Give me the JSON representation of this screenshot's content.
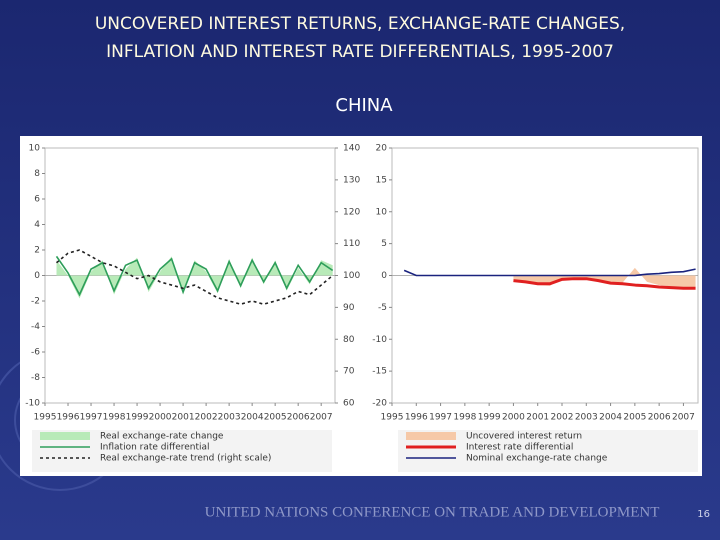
{
  "slide": {
    "title": [
      "UNCOVERED INTEREST RETURNS, EXCHANGE-RATE CHANGES,",
      "INFLATION AND INTEREST RATE DIFFERENTIALS, 1995-2007"
    ],
    "subtitle": "CHINA",
    "footer": "UNITED NATIONS CONFERENCE ON TRADE AND DEVELOPMENT",
    "page_number": "16"
  },
  "chart_data": [
    {
      "type": "line",
      "xlim": [
        1995,
        2007.6
      ],
      "xticks": [
        1995,
        1996,
        1997,
        1998,
        1999,
        2000,
        2001,
        2002,
        2003,
        2004,
        2005,
        2006,
        2007
      ],
      "ylim": [
        -10,
        10
      ],
      "yticks": [
        -10,
        -8,
        -6,
        -4,
        -2,
        0,
        2,
        4,
        6,
        8,
        10
      ],
      "y2lim": [
        60,
        140
      ],
      "y2ticks": [
        60,
        70,
        80,
        90,
        100,
        110,
        120,
        130,
        140
      ],
      "x": [
        1995.5,
        1996,
        1996.5,
        1997,
        1997.5,
        1998,
        1998.5,
        1999,
        1999.5,
        2000,
        2000.5,
        2001,
        2001.5,
        2002,
        2002.5,
        2003,
        2003.5,
        2004,
        2004.5,
        2005,
        2005.5,
        2006,
        2006.5,
        2007,
        2007.5
      ],
      "series": [
        {
          "name": "Real exchange-rate change",
          "kind": "area",
          "color": "#b8eab8",
          "values": [
            1.2,
            0,
            -1.8,
            0.3,
            1.2,
            -1.5,
            0.5,
            1.4,
            -1.3,
            0.3,
            1.5,
            -1.5,
            1.2,
            0.3,
            -1.4,
            1.3,
            -1.0,
            1.4,
            -0.7,
            1.2,
            -1.2,
            0.6,
            -0.7,
            1.2,
            0.8
          ]
        },
        {
          "name": "Inflation rate differential",
          "kind": "line",
          "color": "#2e9e5a",
          "values": [
            1.5,
            0.2,
            -1.5,
            0.5,
            1.0,
            -1.2,
            0.8,
            1.2,
            -1.0,
            0.5,
            1.3,
            -1.3,
            1.0,
            0.5,
            -1.2,
            1.1,
            -0.8,
            1.2,
            -0.5,
            1.0,
            -1.0,
            0.8,
            -0.5,
            1.0,
            0.4
          ]
        },
        {
          "name": "Real exchange-rate trend (right scale)",
          "kind": "line",
          "dash": true,
          "axis": "y2",
          "color": "#222222",
          "values": [
            104,
            107,
            108,
            106,
            104,
            103,
            101,
            99,
            100,
            98,
            97,
            96,
            97,
            95,
            93,
            92,
            91,
            92,
            91,
            92,
            93,
            95,
            94,
            97,
            100
          ]
        }
      ]
    },
    {
      "type": "line",
      "xlim": [
        1995,
        2007.6
      ],
      "xticks": [
        1995,
        1996,
        1997,
        1998,
        1999,
        2000,
        2001,
        2002,
        2003,
        2004,
        2005,
        2006,
        2007
      ],
      "ylim": [
        -20,
        20
      ],
      "yticks": [
        -20,
        -15,
        -10,
        -5,
        0,
        5,
        10,
        15,
        20
      ],
      "x": [
        1995.5,
        1996,
        1996.5,
        1997,
        1997.5,
        1998,
        1998.5,
        1999,
        1999.5,
        2000,
        2000.5,
        2001,
        2001.5,
        2002,
        2002.5,
        2003,
        2003.5,
        2004,
        2004.5,
        2005,
        2005.5,
        2006,
        2006.5,
        2007,
        2007.5
      ],
      "series": [
        {
          "name": "Uncovered interest return",
          "kind": "area",
          "color": "#f6c9a8",
          "values": [
            null,
            null,
            null,
            null,
            null,
            null,
            null,
            null,
            null,
            -0.6,
            -0.9,
            -1.5,
            -1.6,
            -0.5,
            -0.3,
            -0.3,
            -0.6,
            -1.0,
            -1.1,
            1.2,
            -1.0,
            -1.5,
            -1.7,
            -1.8,
            -1.8
          ]
        },
        {
          "name": "Interest rate differential",
          "kind": "line",
          "color": "#e02020",
          "width": 3,
          "values": [
            null,
            null,
            null,
            null,
            null,
            null,
            null,
            null,
            null,
            -0.8,
            -1,
            -1.3,
            -1.3,
            -0.6,
            -0.5,
            -0.5,
            -0.8,
            -1.2,
            -1.3,
            -1.5,
            -1.6,
            -1.8,
            -1.9,
            -2.0,
            -2.0
          ]
        },
        {
          "name": "Nominal exchange-rate change",
          "kind": "line",
          "color": "#1a237e",
          "values": [
            0.8,
            0,
            0,
            0,
            0,
            0,
            0,
            0,
            0,
            0,
            0,
            0,
            0,
            0,
            0,
            0,
            0,
            0,
            0,
            0,
            0.2,
            0.3,
            0.5,
            0.6,
            1.0
          ]
        }
      ]
    }
  ]
}
